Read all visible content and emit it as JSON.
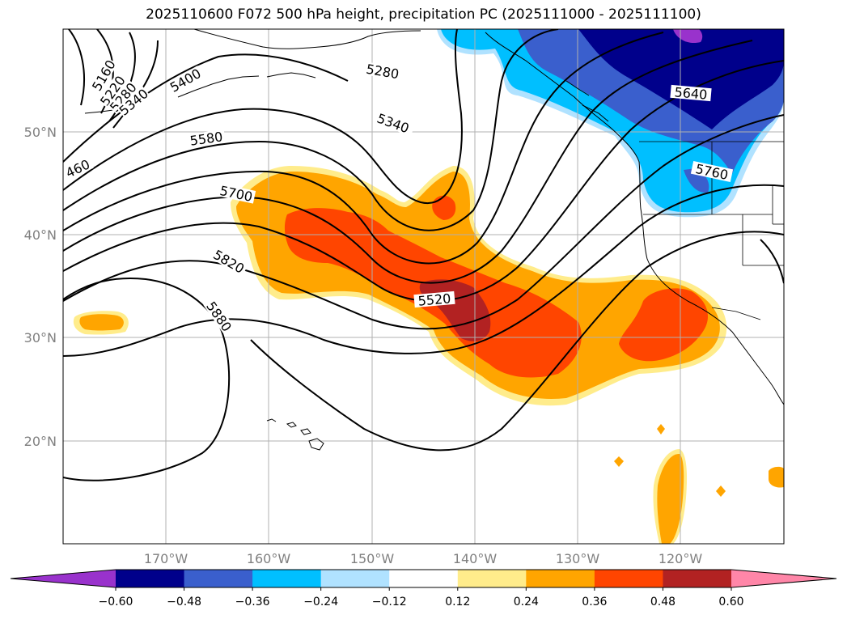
{
  "title": "2025110600 F072 500 hPa height, precipitation PC (2025111000 - 2025111100)",
  "map": {
    "lon_ticks": [
      "170°W",
      "160°W",
      "150°W",
      "140°W",
      "130°W",
      "120°W"
    ],
    "lat_ticks": [
      "50°N",
      "40°N",
      "30°N",
      "20°N"
    ],
    "contour_labels": [
      {
        "text": "5160",
        "kind": "height"
      },
      {
        "text": "5220",
        "kind": "height"
      },
      {
        "text": "5280",
        "kind": "height"
      },
      {
        "text": "5340",
        "kind": "height"
      },
      {
        "text": "5400",
        "kind": "height"
      },
      {
        "text": "460",
        "kind": "height"
      },
      {
        "text": "5580",
        "kind": "height"
      },
      {
        "text": "5700",
        "kind": "height"
      },
      {
        "text": "5820",
        "kind": "height"
      },
      {
        "text": "5880",
        "kind": "height"
      },
      {
        "text": "5280",
        "kind": "height"
      },
      {
        "text": "5340",
        "kind": "height"
      },
      {
        "text": "5520",
        "kind": "height"
      },
      {
        "text": "5640",
        "kind": "height"
      },
      {
        "text": "5760",
        "kind": "height"
      }
    ]
  },
  "colorbar": {
    "labels": [
      "−0.60",
      "−0.48",
      "−0.36",
      "−0.24",
      "−0.12",
      "0.12",
      "0.24",
      "0.36",
      "0.48",
      "0.60"
    ],
    "colors": [
      "#9932cc",
      "#00008b",
      "#3a5fcd",
      "#00bfff",
      "#b0e2ff",
      "#ffffff",
      "#ffec8b",
      "#ffa500",
      "#ff4500",
      "#b22222",
      "#ff86a8",
      "#ff86a8"
    ]
  }
}
